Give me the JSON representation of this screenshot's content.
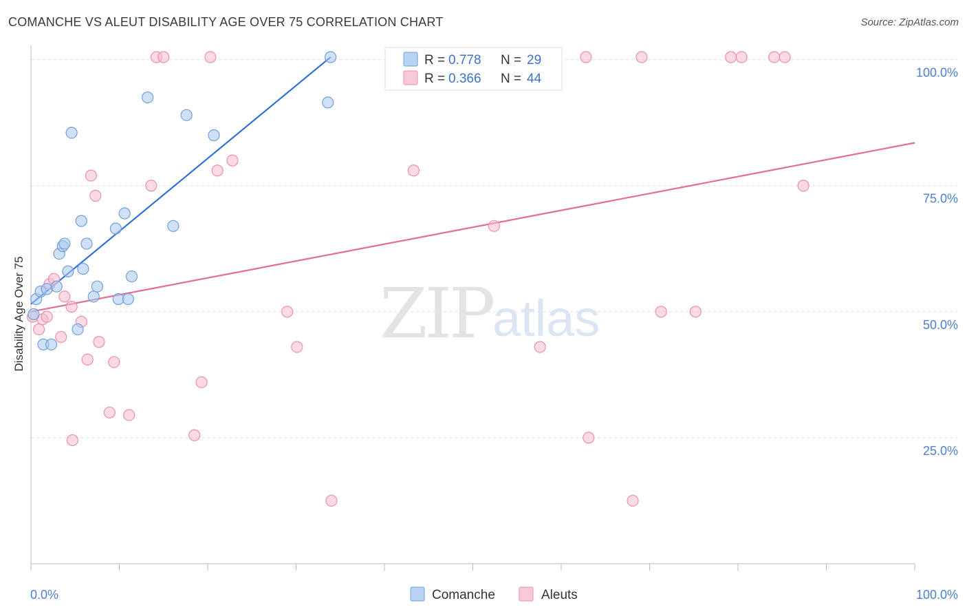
{
  "header": {
    "title": "COMANCHE VS ALEUT DISABILITY AGE OVER 75 CORRELATION CHART",
    "source": "Source: ZipAtlas.com"
  },
  "watermark": {
    "zip": "ZIP",
    "atlas": "atlas"
  },
  "colors": {
    "comanche_fill": "#a9c8f0",
    "comanche_stroke": "#6f9fdc",
    "comanche_line": "#2f72d6",
    "aleut_fill": "#f7bcd0",
    "aleut_stroke": "#e98fb0",
    "aleut_line": "#e46a97",
    "grid": "#dddddd",
    "axis_tick": "#4a7fd0"
  },
  "legend_top": {
    "comanche": {
      "r_label": "R = ",
      "r_value": "0.778",
      "n_label": "N = ",
      "n_value": "29"
    },
    "aleut": {
      "r_label": "R = ",
      "r_value": "0.366",
      "n_label": "N = ",
      "n_value": "44"
    }
  },
  "legend_bottom": {
    "comanche": "Comanche",
    "aleut": "Aleuts"
  },
  "chart_data": {
    "type": "scatter",
    "ylabel": "Disability Age Over 75",
    "xlabel": "",
    "xlim": [
      0,
      100
    ],
    "ylim": [
      0,
      102
    ],
    "x_tick_labels": [
      "0.0%",
      "100.0%"
    ],
    "y_ticks": [
      25,
      50,
      75,
      100
    ],
    "y_tick_labels": [
      "25.0%",
      "50.0%",
      "75.0%",
      "100.0%"
    ],
    "grid": true,
    "legend_position": "top-center",
    "series": [
      {
        "name": "Comanche",
        "r": 0.778,
        "n": 29,
        "points": [
          [
            0.3,
            49.5
          ],
          [
            0.6,
            52.5
          ],
          [
            1.1,
            54.0
          ],
          [
            1.4,
            43.5
          ],
          [
            1.8,
            54.5
          ],
          [
            2.3,
            43.5
          ],
          [
            2.9,
            55.0
          ],
          [
            3.2,
            61.5
          ],
          [
            3.6,
            63.0
          ],
          [
            3.8,
            63.5
          ],
          [
            4.2,
            58.0
          ],
          [
            4.6,
            85.5
          ],
          [
            5.3,
            46.5
          ],
          [
            5.7,
            68.0
          ],
          [
            5.9,
            58.5
          ],
          [
            6.3,
            63.5
          ],
          [
            7.1,
            53.0
          ],
          [
            7.5,
            55.0
          ],
          [
            9.6,
            66.5
          ],
          [
            9.9,
            52.5
          ],
          [
            10.6,
            69.5
          ],
          [
            11.0,
            52.5
          ],
          [
            11.4,
            57.0
          ],
          [
            13.2,
            92.5
          ],
          [
            16.1,
            67.0
          ],
          [
            17.6,
            89.0
          ],
          [
            20.7,
            85.0
          ],
          [
            33.6,
            91.5
          ],
          [
            33.9,
            100.5
          ]
        ],
        "trend": {
          "x": [
            0.0,
            33.9
          ],
          "y": [
            51.5,
            100.5
          ]
        }
      },
      {
        "name": "Aleuts",
        "r": 0.366,
        "n": 44,
        "points": [
          [
            0.2,
            49.0
          ],
          [
            0.9,
            46.5
          ],
          [
            1.3,
            48.5
          ],
          [
            1.8,
            49.0
          ],
          [
            2.1,
            55.5
          ],
          [
            2.6,
            56.5
          ],
          [
            3.4,
            45.0
          ],
          [
            3.8,
            53.0
          ],
          [
            4.6,
            51.0
          ],
          [
            4.7,
            24.5
          ],
          [
            5.7,
            48.0
          ],
          [
            6.4,
            40.5
          ],
          [
            6.8,
            77.0
          ],
          [
            7.3,
            73.0
          ],
          [
            7.7,
            44.0
          ],
          [
            8.9,
            30.0
          ],
          [
            9.4,
            40.0
          ],
          [
            11.1,
            29.5
          ],
          [
            13.6,
            75.0
          ],
          [
            14.2,
            100.5
          ],
          [
            15.0,
            100.5
          ],
          [
            18.5,
            25.5
          ],
          [
            19.3,
            36.0
          ],
          [
            20.3,
            100.5
          ],
          [
            21.1,
            78.0
          ],
          [
            22.8,
            80.0
          ],
          [
            29.0,
            50.0
          ],
          [
            30.1,
            43.0
          ],
          [
            34.0,
            12.5
          ],
          [
            43.3,
            78.0
          ],
          [
            47.1,
            100.5
          ],
          [
            52.4,
            67.0
          ],
          [
            57.6,
            43.0
          ],
          [
            62.8,
            100.5
          ],
          [
            63.1,
            25.0
          ],
          [
            68.1,
            12.5
          ],
          [
            69.1,
            100.5
          ],
          [
            71.3,
            50.0
          ],
          [
            75.2,
            50.0
          ],
          [
            79.2,
            100.5
          ],
          [
            80.4,
            100.5
          ],
          [
            84.1,
            100.5
          ],
          [
            85.3,
            100.5
          ],
          [
            87.4,
            75.0
          ]
        ],
        "trend": {
          "x": [
            0.0,
            100.0
          ],
          "y": [
            50.0,
            83.5
          ]
        }
      }
    ]
  }
}
